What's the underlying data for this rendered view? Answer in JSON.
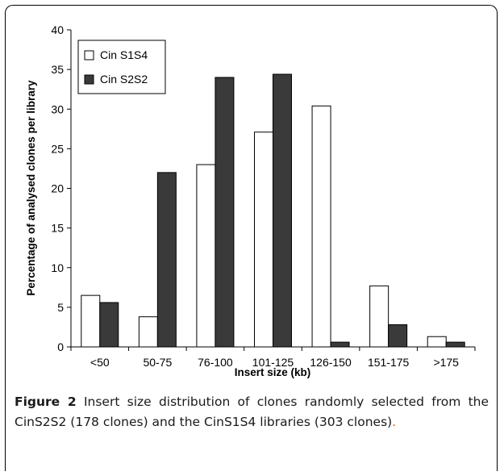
{
  "chart_data": {
    "type": "bar",
    "categories": [
      "<50",
      "50-75",
      "76-100",
      "101-125",
      "126-150",
      "151-175",
      ">175"
    ],
    "series": [
      {
        "name": "Cin S1S4",
        "color": "#ffffff",
        "values": [
          6.5,
          3.8,
          23.0,
          27.1,
          30.4,
          7.7,
          1.3
        ]
      },
      {
        "name": "Cin S2S2",
        "color": "#3a3a3a",
        "values": [
          5.6,
          22.0,
          34.0,
          34.4,
          0.6,
          2.8,
          0.6
        ]
      }
    ],
    "xlabel": "Insert size (kb)",
    "ylabel": "Percentage of analysed clones per library",
    "ylim": [
      0,
      40
    ],
    "yticks": [
      0,
      5,
      10,
      15,
      20,
      25,
      30,
      35,
      40
    ],
    "legend_position": "top-left",
    "grid": false
  },
  "caption": {
    "label": "Figure 2",
    "text": " Insert size distribution of clones randomly selected from the CinS2S2 (178 clones) and the CinS1S4 libraries (303 clones)",
    "period": "."
  }
}
